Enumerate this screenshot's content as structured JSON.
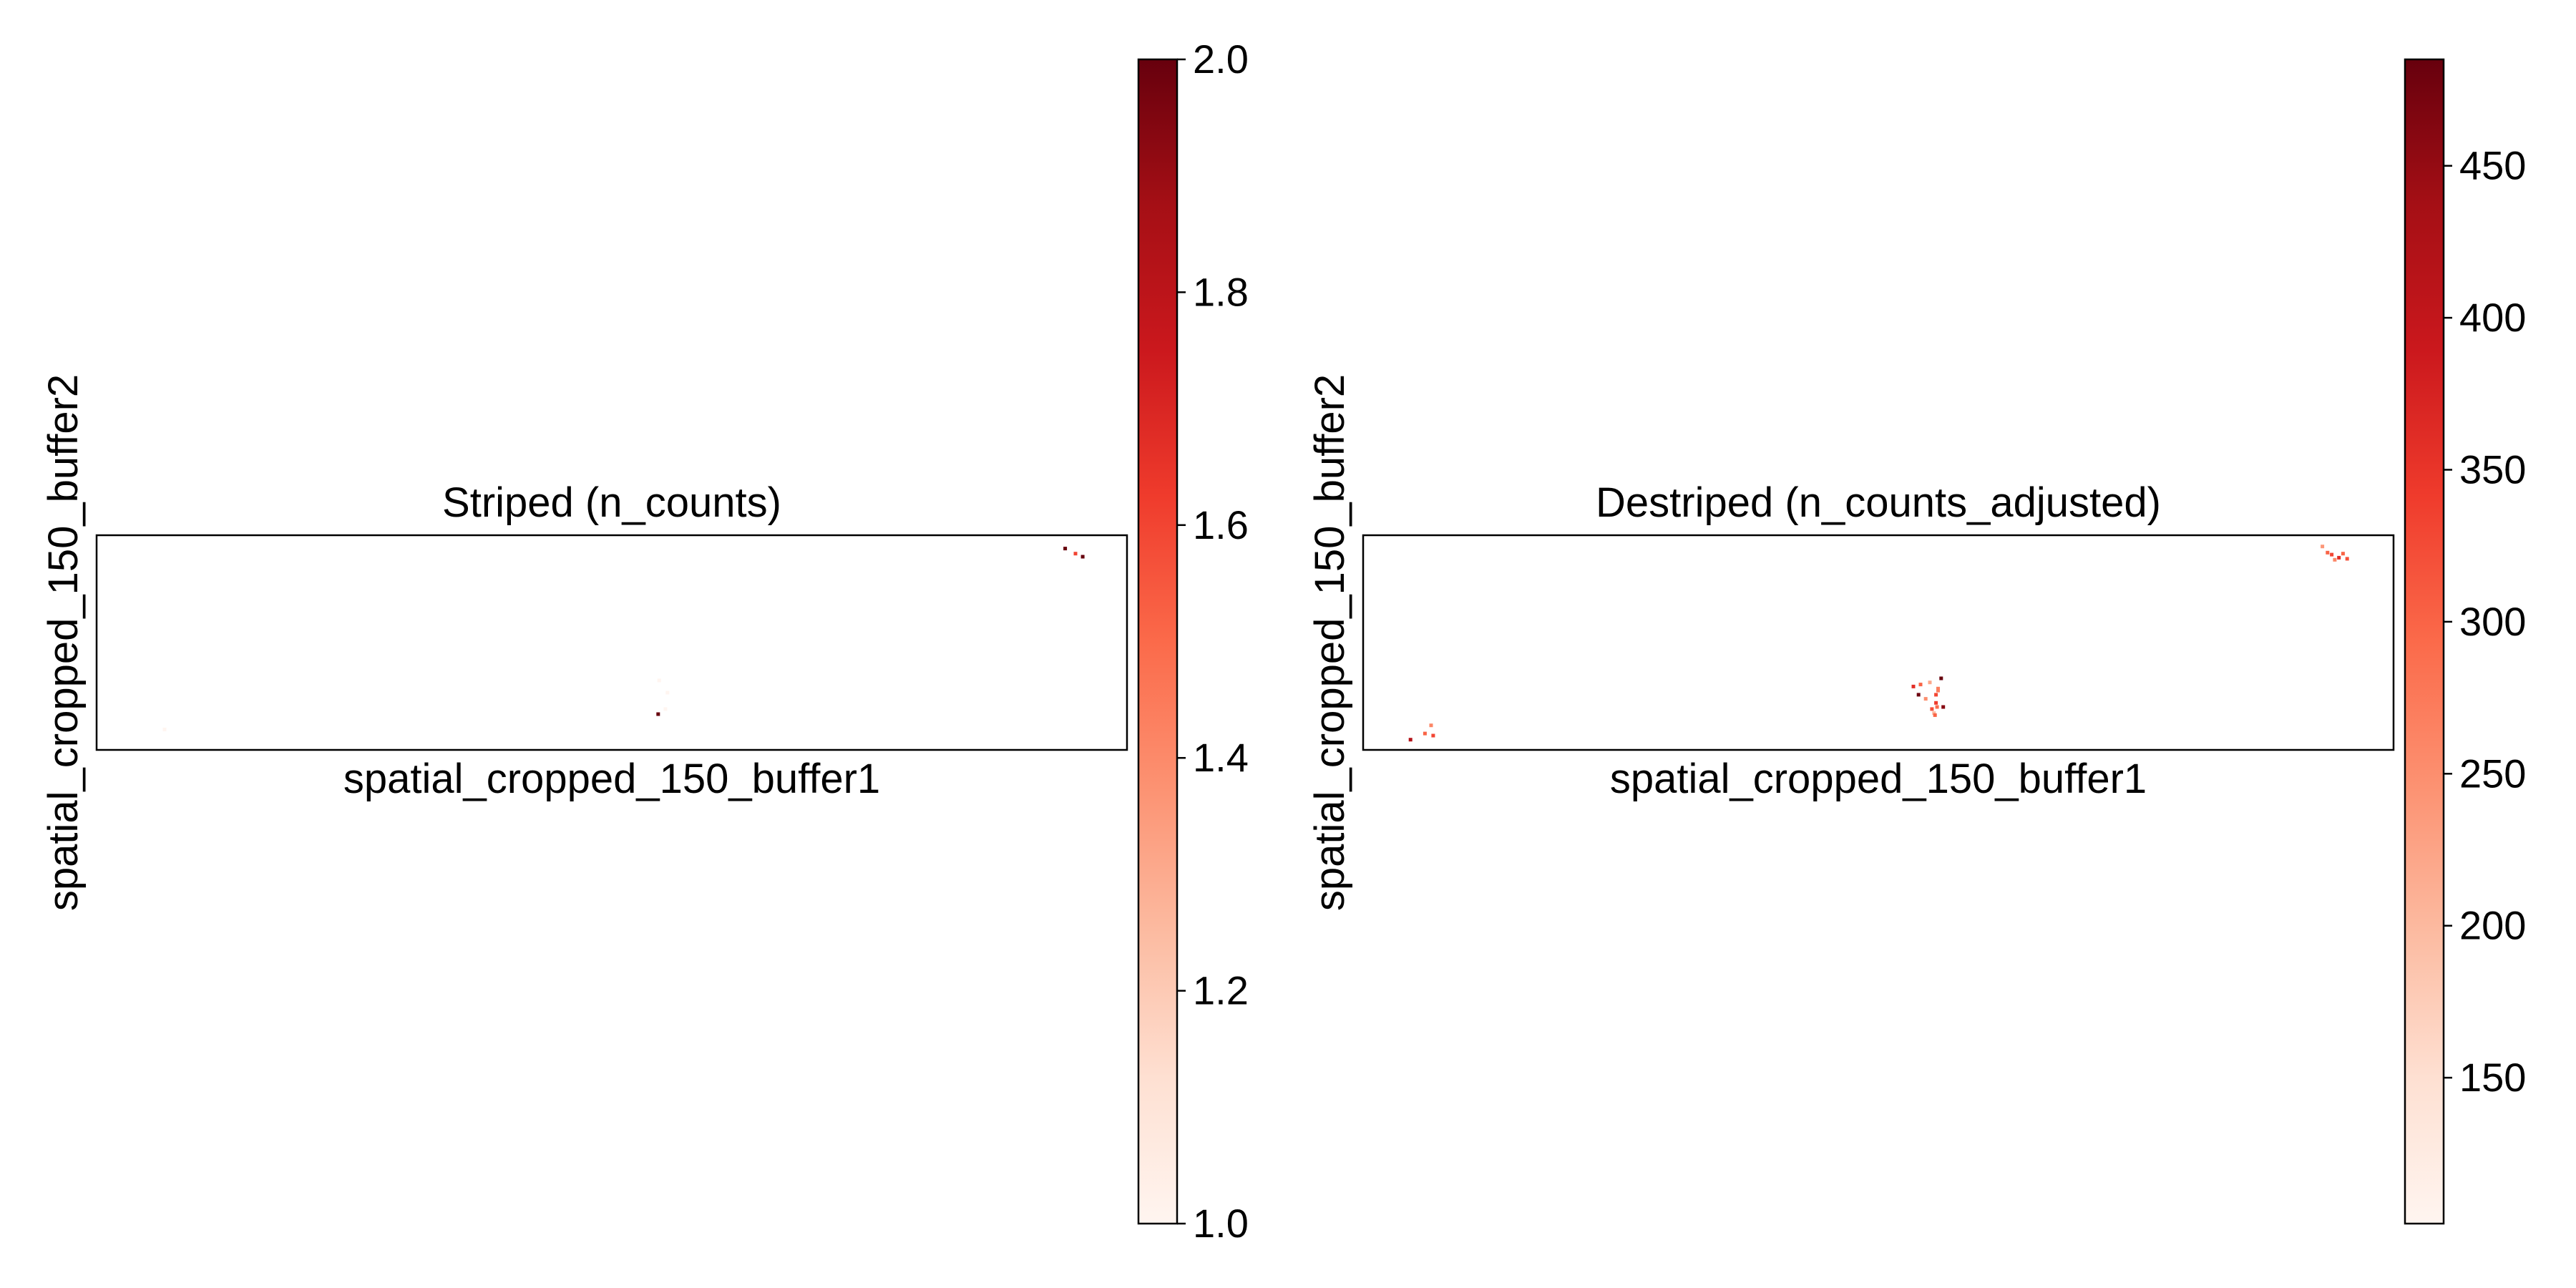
{
  "chart_data": [
    {
      "type": "scatter",
      "title": "Striped (n_counts)",
      "xlabel": "spatial_cropped_150_buffer1",
      "ylabel": "spatial_cropped_150_buffer2",
      "xlim": [
        0,
        1000
      ],
      "ylim": [
        0,
        210
      ],
      "grid": false,
      "legend": "colorbar-right",
      "colormap": "Reds",
      "colorbar": {
        "range": [
          1.0,
          2.0
        ],
        "ticks": [
          "1.0",
          "1.2",
          "1.4",
          "1.6",
          "1.8",
          "2.0"
        ]
      },
      "points": [
        {
          "x": 66,
          "y": 20,
          "value": 1.0
        },
        {
          "x": 546,
          "y": 68,
          "value": 1.0
        },
        {
          "x": 554,
          "y": 56,
          "value": 1.0
        },
        {
          "x": 552,
          "y": 40,
          "value": 1.0
        },
        {
          "x": 545,
          "y": 35,
          "value": 2.0
        },
        {
          "x": 940,
          "y": 197,
          "value": 2.0
        },
        {
          "x": 950,
          "y": 192,
          "value": 1.6
        },
        {
          "x": 957,
          "y": 189,
          "value": 2.0
        }
      ]
    },
    {
      "type": "scatter",
      "title": "Destriped (n_counts_adjusted)",
      "xlabel": "spatial_cropped_150_buffer1",
      "ylabel": "spatial_cropped_150_buffer2",
      "xlim": [
        0,
        1000
      ],
      "ylim": [
        0,
        210
      ],
      "grid": false,
      "legend": "colorbar-right",
      "colormap": "Reds",
      "colorbar": {
        "range": [
          102,
          485
        ],
        "ticks": [
          "150",
          "200",
          "250",
          "300",
          "350",
          "400",
          "450"
        ]
      },
      "points": [
        {
          "x": 46,
          "y": 10,
          "value": 420
        },
        {
          "x": 60,
          "y": 16,
          "value": 300
        },
        {
          "x": 66,
          "y": 24,
          "value": 260
        },
        {
          "x": 68,
          "y": 14,
          "value": 330
        },
        {
          "x": 534,
          "y": 62,
          "value": 360
        },
        {
          "x": 539,
          "y": 54,
          "value": 480
        },
        {
          "x": 541,
          "y": 64,
          "value": 300
        },
        {
          "x": 546,
          "y": 50,
          "value": 250
        },
        {
          "x": 550,
          "y": 66,
          "value": 220
        },
        {
          "x": 554,
          "y": 36,
          "value": 200
        },
        {
          "x": 556,
          "y": 46,
          "value": 340
        },
        {
          "x": 558,
          "y": 58,
          "value": 270
        },
        {
          "x": 561,
          "y": 70,
          "value": 485
        },
        {
          "x": 552,
          "y": 40,
          "value": 320
        },
        {
          "x": 557,
          "y": 42,
          "value": 290
        },
        {
          "x": 556,
          "y": 54,
          "value": 330
        },
        {
          "x": 555,
          "y": 34,
          "value": 300
        },
        {
          "x": 558,
          "y": 60,
          "value": 270
        },
        {
          "x": 563,
          "y": 42,
          "value": 460
        },
        {
          "x": 931,
          "y": 199,
          "value": 240
        },
        {
          "x": 936,
          "y": 193,
          "value": 300
        },
        {
          "x": 940,
          "y": 191,
          "value": 330
        },
        {
          "x": 943,
          "y": 186,
          "value": 260
        },
        {
          "x": 947,
          "y": 188,
          "value": 360
        },
        {
          "x": 951,
          "y": 192,
          "value": 300
        },
        {
          "x": 955,
          "y": 187,
          "value": 320
        }
      ]
    }
  ]
}
